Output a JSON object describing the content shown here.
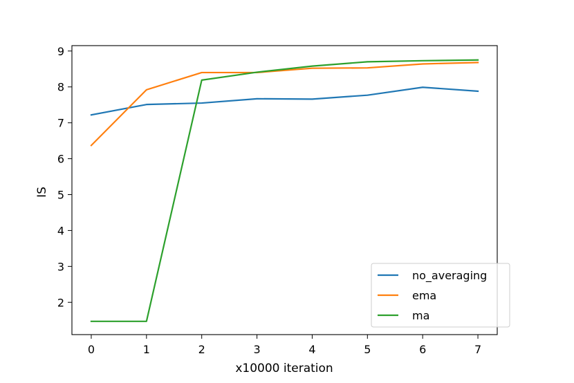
{
  "chart_data": {
    "type": "line",
    "title": "",
    "xlabel": "x10000 iteration",
    "ylabel": "IS",
    "x": [
      0,
      1,
      2,
      3,
      4,
      5,
      6,
      7
    ],
    "xticks": [
      "0",
      "1",
      "2",
      "3",
      "4",
      "5",
      "6",
      "7"
    ],
    "yticks": [
      "2",
      "3",
      "4",
      "5",
      "6",
      "7",
      "8",
      "9"
    ],
    "xlim": [
      -0.35,
      7.35
    ],
    "ylim": [
      1.1,
      9.15
    ],
    "grid": false,
    "legend_position": "lower-right",
    "series": [
      {
        "name": "no_averaging",
        "color": "#1f77b4",
        "values": [
          7.22,
          7.51,
          7.55,
          7.67,
          7.66,
          7.77,
          7.99,
          7.88
        ]
      },
      {
        "name": "ema",
        "color": "#ff7f0e",
        "values": [
          6.37,
          7.92,
          8.4,
          8.4,
          8.52,
          8.53,
          8.64,
          8.68
        ]
      },
      {
        "name": "ma",
        "color": "#2ca02c",
        "values": [
          1.47,
          1.47,
          8.19,
          8.41,
          8.58,
          8.7,
          8.73,
          8.75
        ]
      }
    ]
  }
}
